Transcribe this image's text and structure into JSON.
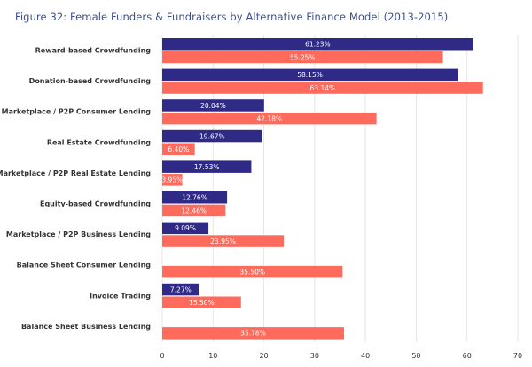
{
  "chart_data": {
    "type": "bar",
    "orientation": "horizontal",
    "title": "Figure 32: Female Funders & Fundraisers by Alternative Finance Model (2013-2015)",
    "xlabel": "",
    "ylabel": "",
    "xlim": [
      0,
      70
    ],
    "xticks": [
      0,
      10,
      20,
      30,
      40,
      50,
      60,
      70
    ],
    "grid": true,
    "legend": null,
    "categories": [
      "Reward-based Crowdfunding",
      "Donation-based Crowdfunding",
      "Marketplace / P2P Consumer Lending",
      "Real Estate Crowdfunding",
      "Marketplace / P2P Real Estate Lending",
      "Equity-based Crowdfunding",
      "Marketplace / P2P Business Lending",
      "Balance Sheet Consumer Lending",
      "Invoice Trading",
      "Balance Sheet Business Lending"
    ],
    "series": [
      {
        "name": "Series 1 (navy)",
        "color": "#2e2a86",
        "values": [
          61.23,
          58.15,
          20.04,
          19.67,
          17.53,
          12.76,
          9.09,
          null,
          7.27,
          null
        ],
        "labels": [
          "61.23%",
          "58.15%",
          "20.04%",
          "19.67%",
          "17.53%",
          "12.76%",
          "9.09%",
          null,
          "7.27%",
          null
        ]
      },
      {
        "name": "Series 2 (coral)",
        "color": "#fe6b5d",
        "values": [
          55.25,
          63.14,
          42.18,
          6.4,
          3.95,
          12.46,
          23.95,
          35.5,
          15.5,
          35.78
        ],
        "labels": [
          "55.25%",
          "63.14%",
          "42.18%",
          "6.40%",
          "3.95%",
          "12.46%",
          "23.95%",
          "35.50%",
          "15.50%",
          "35.78%"
        ]
      }
    ]
  }
}
